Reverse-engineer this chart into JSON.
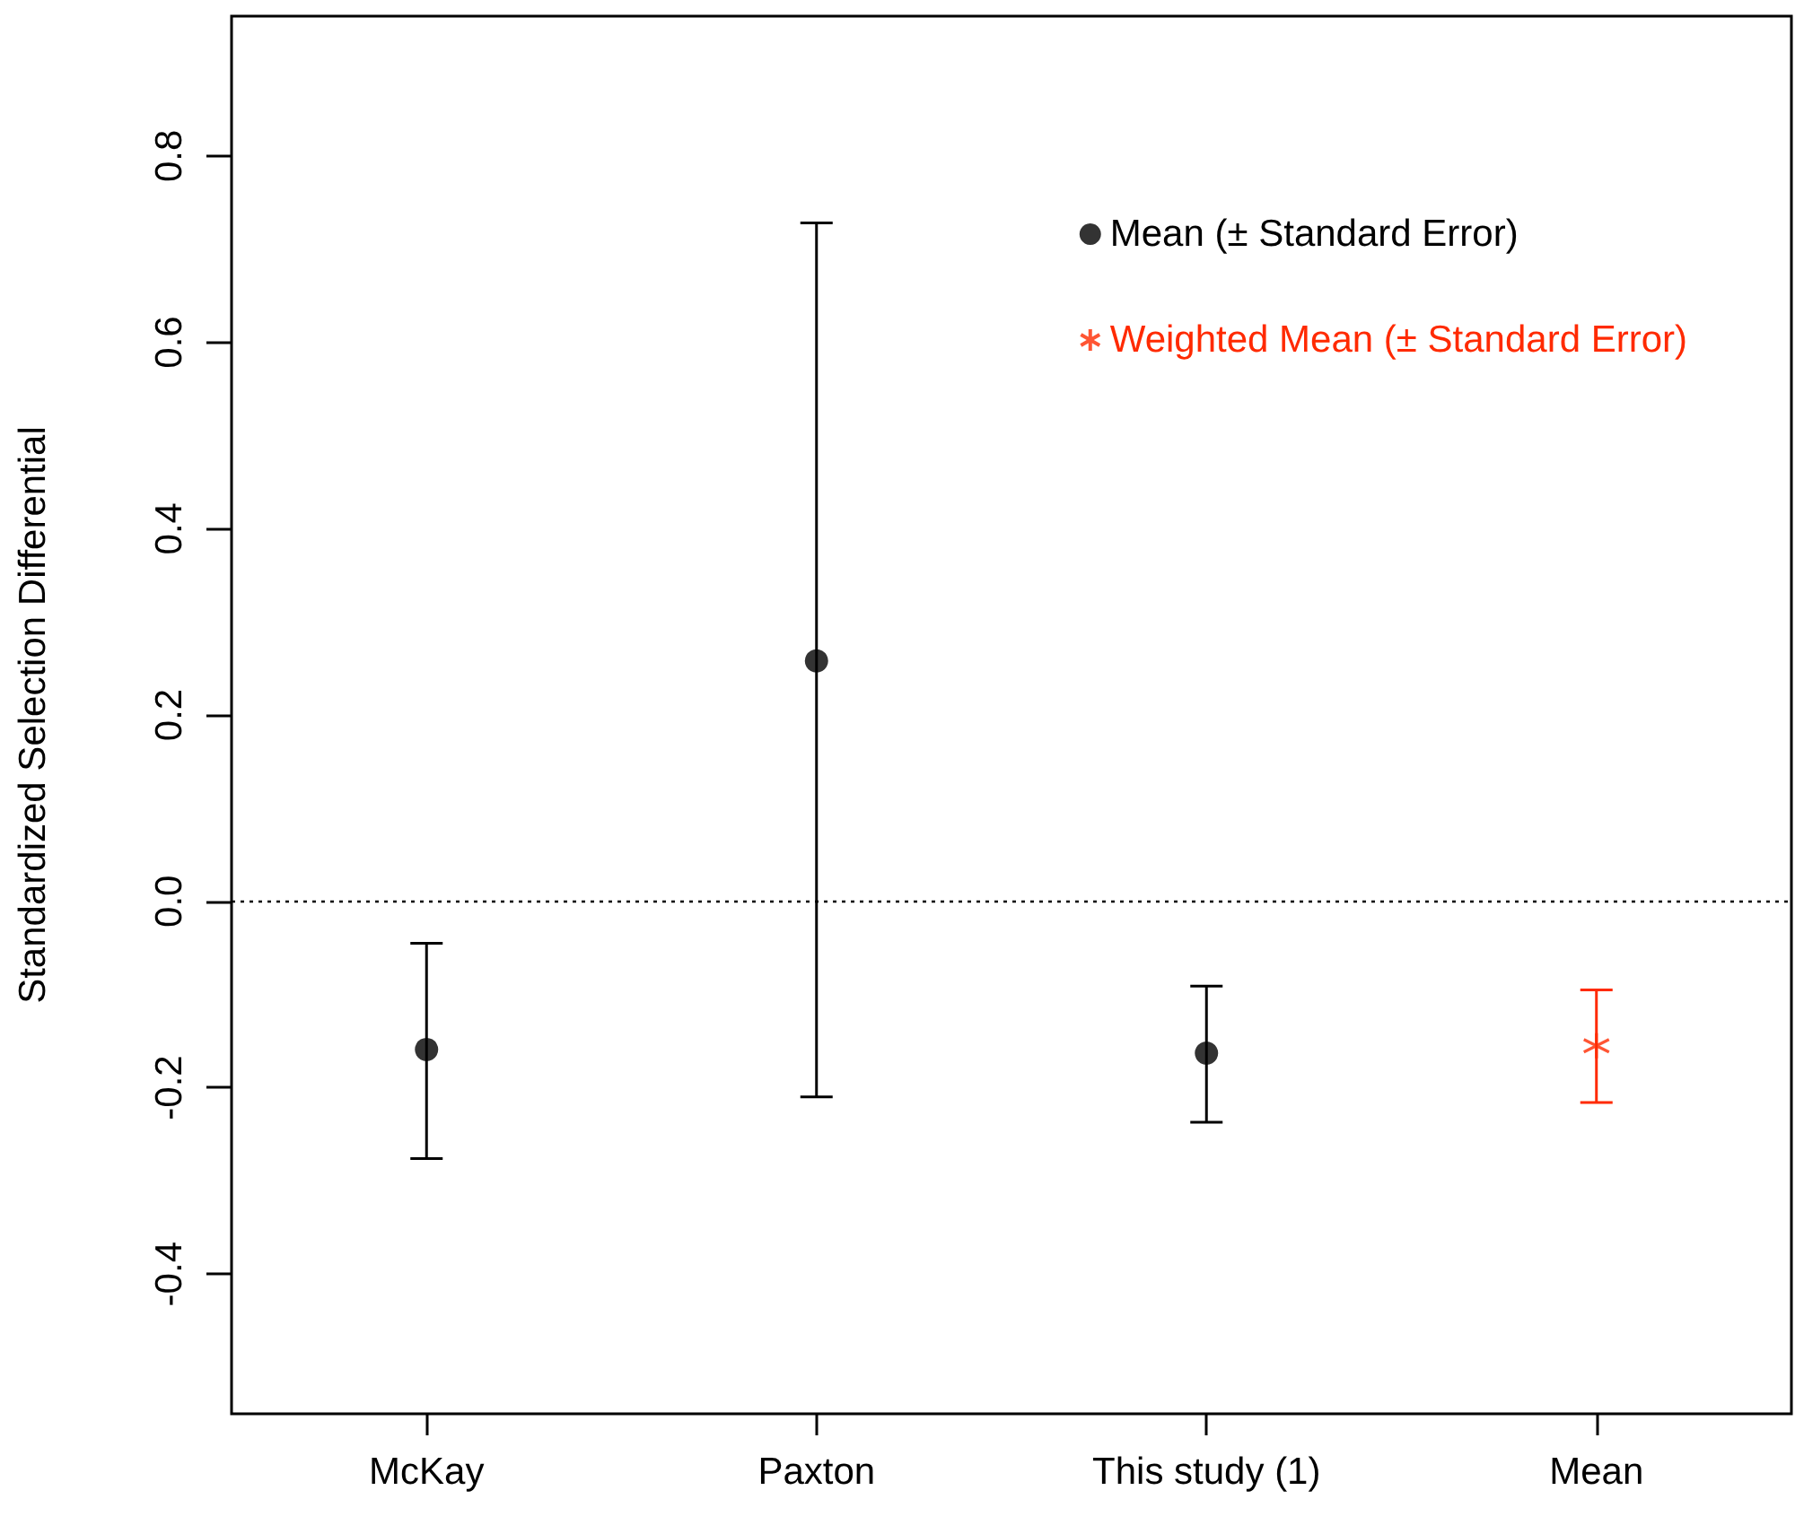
{
  "chart_data": {
    "type": "scatter",
    "ylabel": "Standardized Selection Differential",
    "categories": [
      "McKay",
      "Paxton",
      "This study (1)",
      "Mean"
    ],
    "series": [
      {
        "name": "Mean (± Standard Error)",
        "color": "#000000",
        "marker": "circle",
        "values": [
          -0.159,
          0.258,
          -0.163,
          null
        ],
        "errors": [
          [
            -0.276,
            -0.045
          ],
          [
            -0.21,
            0.728
          ],
          [
            -0.237,
            -0.091
          ],
          null
        ]
      },
      {
        "name": "Weighted Mean (± Standard Error)",
        "color": "#ff2a00",
        "marker": "cross",
        "values": [
          null,
          null,
          null,
          -0.155
        ],
        "errors": [
          null,
          null,
          null,
          [
            -0.216,
            -0.095
          ]
        ]
      }
    ],
    "ylim": [
      -0.55,
      0.95
    ],
    "yticks": [
      -0.4,
      -0.2,
      {
        "value": 0,
        "label": "0.0"
      },
      0.2,
      0.4,
      0.6,
      0.8
    ],
    "grid": false,
    "legend": "top right",
    "ref_lines": [
      {
        "axis": "y",
        "value": 0,
        "line_style": "dotted",
        "color": "#000000"
      }
    ]
  }
}
